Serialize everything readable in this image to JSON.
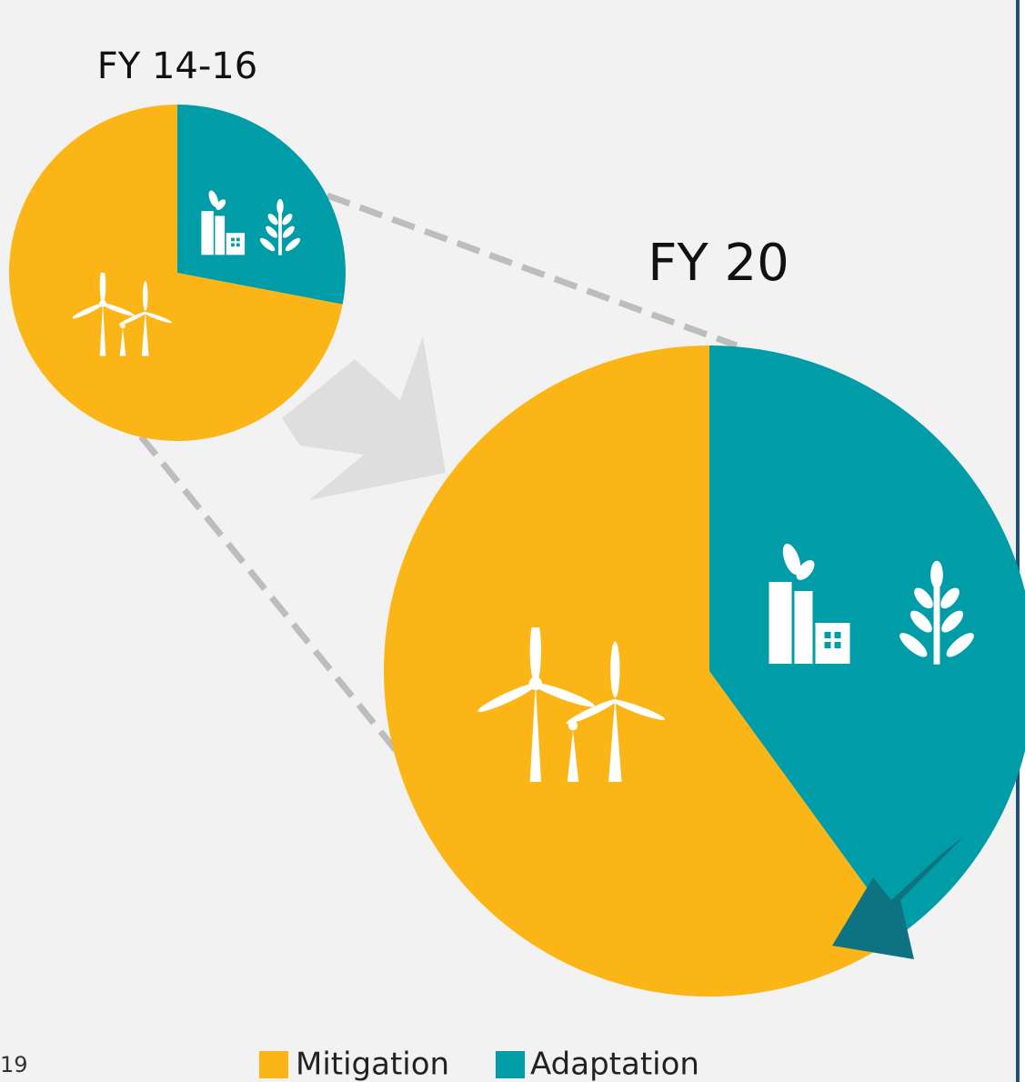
{
  "chart_data": [
    {
      "type": "pie",
      "title": "FY 14-16",
      "categories": [
        "Mitigation",
        "Adaptation"
      ],
      "values": [
        72,
        28
      ],
      "colors": [
        "#fbb516",
        "#009ca8"
      ]
    },
    {
      "type": "pie",
      "title": "FY 20",
      "categories": [
        "Mitigation",
        "Adaptation"
      ],
      "values": [
        60,
        40
      ],
      "colors": [
        "#fbb516",
        "#009ca8"
      ]
    }
  ],
  "page_number": "19"
}
